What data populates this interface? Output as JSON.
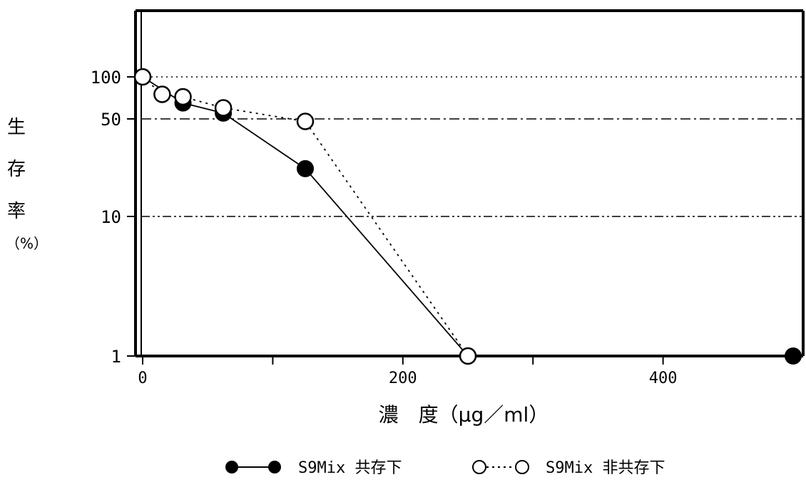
{
  "chart_data": {
    "type": "line",
    "xlabel": "濃　度（μg／ml）",
    "ylabel": "生存率（%）",
    "ylabel_chars": [
      "生",
      "存",
      "率",
      "（%）"
    ],
    "xlim": [
      0,
      500
    ],
    "ylim": [
      1,
      200
    ],
    "yscale": "log",
    "x_ticks": [
      0,
      100,
      200,
      300,
      400,
      500
    ],
    "x_tick_labels": [
      {
        "value": 0,
        "label": "0"
      },
      {
        "value": 200,
        "label": "200"
      },
      {
        "value": 400,
        "label": "400"
      }
    ],
    "y_tick_labels": [
      {
        "value": 100,
        "label": "100"
      },
      {
        "value": 50,
        "label": "50"
      },
      {
        "value": 10,
        "label": "10"
      },
      {
        "value": 1,
        "label": "1"
      }
    ],
    "reference_lines": [
      {
        "y": 100,
        "style": "dotted"
      },
      {
        "y": 50,
        "style": "dash-dot"
      },
      {
        "y": 10,
        "style": "dash-dot-dot"
      }
    ],
    "series": [
      {
        "name": "S9Mix 共存下",
        "marker": "filled-circle",
        "line": "solid",
        "x": [
          0,
          31,
          62,
          125,
          250,
          500
        ],
        "y": [
          100,
          65,
          55,
          22,
          1,
          1
        ]
      },
      {
        "name": "S9Mix 非共存下",
        "marker": "open-circle",
        "line": "dotted",
        "x": [
          0,
          15,
          31,
          62,
          125,
          250
        ],
        "y": [
          100,
          75,
          72,
          60,
          48,
          1
        ]
      }
    ],
    "legend": {
      "position": "bottom-center",
      "items": [
        {
          "symbol": "●—●",
          "label": "S9Mix 共存下"
        },
        {
          "symbol": "○…○",
          "label": "S9Mix 非共存下"
        }
      ]
    }
  }
}
